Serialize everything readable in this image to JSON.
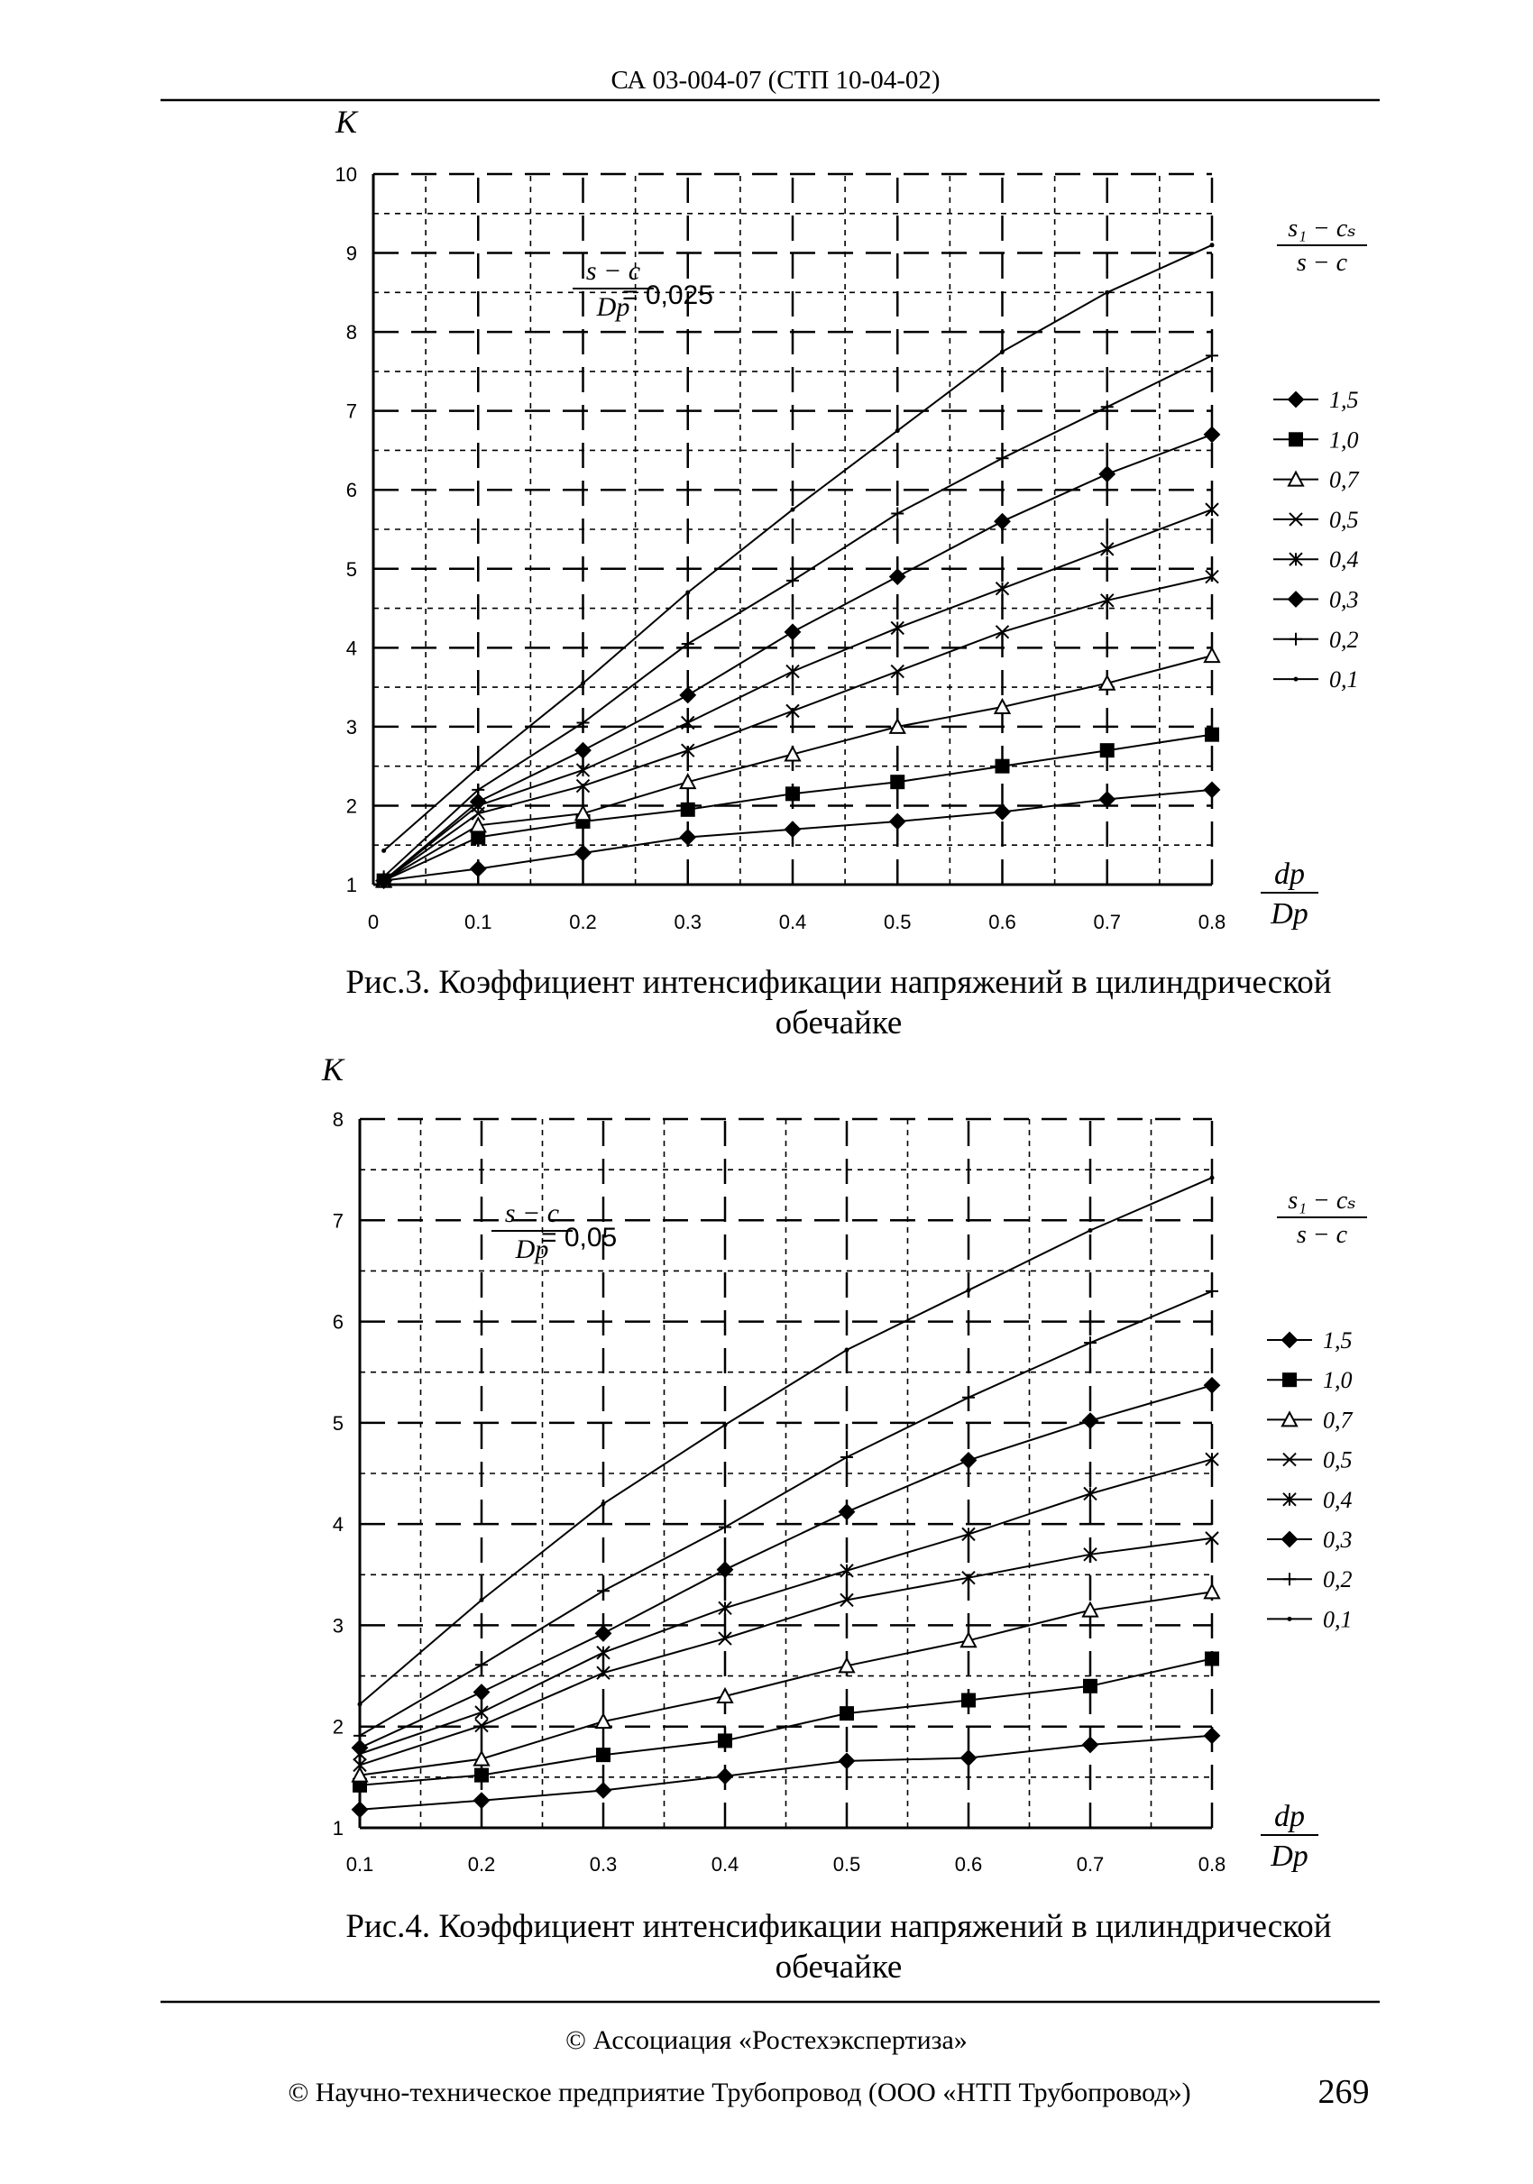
{
  "header": {
    "title": "СА 03-004-07 (СТП 10-04-02)"
  },
  "captions": [
    {
      "line1": "Рис.3. Коэффициент интенсификации напряжений в цилиндрической",
      "line2": "обечайке"
    },
    {
      "line1": "Рис.4. Коэффициент интенсификации напряжений в цилиндрической",
      "line2": "обечайке"
    }
  ],
  "footer": {
    "line1": "© Ассоциация «Ростехэкспертиза»",
    "line2": "© Научно-техническое предприятие Трубопровод (ООО «НТП Трубопровод»)",
    "page_number": "269"
  },
  "chart_data": [
    {
      "type": "line",
      "ylabel": "K",
      "xlabel": {
        "num": "dр",
        "den": "Dр"
      },
      "annotation": {
        "num": "s − c",
        "den": "Dр",
        "value": "= 0,025"
      },
      "legend_title": {
        "num": "s₁ − cₛ",
        "den": "s − c"
      },
      "legend_position": "right",
      "grid": true,
      "xlim": [
        0,
        0.8
      ],
      "ylim": [
        1,
        10
      ],
      "x_ticks": [
        "0",
        "0.1",
        "0.2",
        "0.3",
        "0.4",
        "0.5",
        "0.6",
        "0.7",
        "0.8"
      ],
      "y_ticks": [
        "1",
        "2",
        "3",
        "4",
        "5",
        "6",
        "7",
        "8",
        "9",
        "10"
      ],
      "x": [
        0.01,
        0.1,
        0.2,
        0.3,
        0.4,
        0.5,
        0.6,
        0.7,
        0.8
      ],
      "series": [
        {
          "name": "1,5",
          "marker": "diamond",
          "values": [
            1.05,
            1.2,
            1.4,
            1.6,
            1.7,
            1.8,
            1.92,
            2.08,
            2.2
          ]
        },
        {
          "name": "1,0",
          "marker": "square",
          "values": [
            1.05,
            1.6,
            1.8,
            1.95,
            2.15,
            2.3,
            2.5,
            2.7,
            2.9
          ]
        },
        {
          "name": "0,7",
          "marker": "triangle-open",
          "values": [
            1.05,
            1.75,
            1.9,
            2.3,
            2.65,
            3.0,
            3.25,
            3.55,
            3.9
          ]
        },
        {
          "name": "0,5",
          "marker": "x",
          "values": [
            1.05,
            1.9,
            2.25,
            2.7,
            3.2,
            3.7,
            4.2,
            4.6,
            4.9
          ]
        },
        {
          "name": "0,4",
          "marker": "asterisk",
          "values": [
            1.05,
            2.0,
            2.45,
            3.05,
            3.7,
            4.25,
            4.75,
            5.25,
            5.75
          ]
        },
        {
          "name": "0,3",
          "marker": "circle",
          "values": [
            1.05,
            2.05,
            2.7,
            3.4,
            4.2,
            4.9,
            5.6,
            6.2,
            6.7
          ]
        },
        {
          "name": "0,2",
          "marker": "plus",
          "values": [
            1.1,
            2.2,
            3.05,
            4.05,
            4.85,
            5.7,
            6.4,
            7.05,
            7.7
          ]
        },
        {
          "name": "0,1",
          "marker": "dash",
          "values": [
            1.43,
            2.48,
            3.55,
            4.7,
            5.75,
            6.75,
            7.75,
            8.5,
            9.1
          ]
        }
      ]
    },
    {
      "type": "line",
      "ylabel": "K",
      "xlabel": {
        "num": "dр",
        "den": "Dр"
      },
      "annotation": {
        "num": "s − c",
        "den": "Dр",
        "value": "= 0,05"
      },
      "legend_title": {
        "num": "s₁ − cₛ",
        "den": "s − c"
      },
      "legend_position": "right",
      "grid": true,
      "xlim": [
        0.1,
        0.8
      ],
      "ylim": [
        1,
        8
      ],
      "x_ticks": [
        "0.1",
        "0.2",
        "0.3",
        "0.4",
        "0.5",
        "0.6",
        "0.7",
        "0.8"
      ],
      "y_ticks": [
        "1",
        "2",
        "3",
        "4",
        "5",
        "6",
        "7",
        "8"
      ],
      "x": [
        0.1,
        0.2,
        0.3,
        0.4,
        0.5,
        0.6,
        0.7,
        0.8
      ],
      "series": [
        {
          "name": "1,5",
          "marker": "diamond",
          "values": [
            1.18,
            1.27,
            1.37,
            1.51,
            1.66,
            1.69,
            1.82,
            1.91
          ]
        },
        {
          "name": "1,0",
          "marker": "square",
          "values": [
            1.42,
            1.52,
            1.72,
            1.86,
            2.13,
            2.26,
            2.4,
            2.67
          ]
        },
        {
          "name": "0,7",
          "marker": "triangle-open",
          "values": [
            1.52,
            1.68,
            2.05,
            2.3,
            2.6,
            2.85,
            3.15,
            3.33
          ]
        },
        {
          "name": "0,5",
          "marker": "x",
          "values": [
            1.62,
            2.01,
            2.53,
            2.87,
            3.25,
            3.47,
            3.7,
            3.86
          ]
        },
        {
          "name": "0,4",
          "marker": "asterisk",
          "values": [
            1.73,
            2.14,
            2.73,
            3.17,
            3.54,
            3.9,
            4.3,
            4.64
          ]
        },
        {
          "name": "0,3",
          "marker": "circle",
          "values": [
            1.79,
            2.34,
            2.92,
            3.55,
            4.12,
            4.63,
            5.02,
            5.37
          ]
        },
        {
          "name": "0,2",
          "marker": "plus",
          "values": [
            1.91,
            2.61,
            3.34,
            3.97,
            4.66,
            5.25,
            5.79,
            6.3
          ]
        },
        {
          "name": "0,1",
          "marker": "dash",
          "values": [
            2.22,
            3.25,
            4.2,
            4.98,
            5.72,
            6.31,
            6.9,
            7.42
          ]
        }
      ]
    }
  ]
}
